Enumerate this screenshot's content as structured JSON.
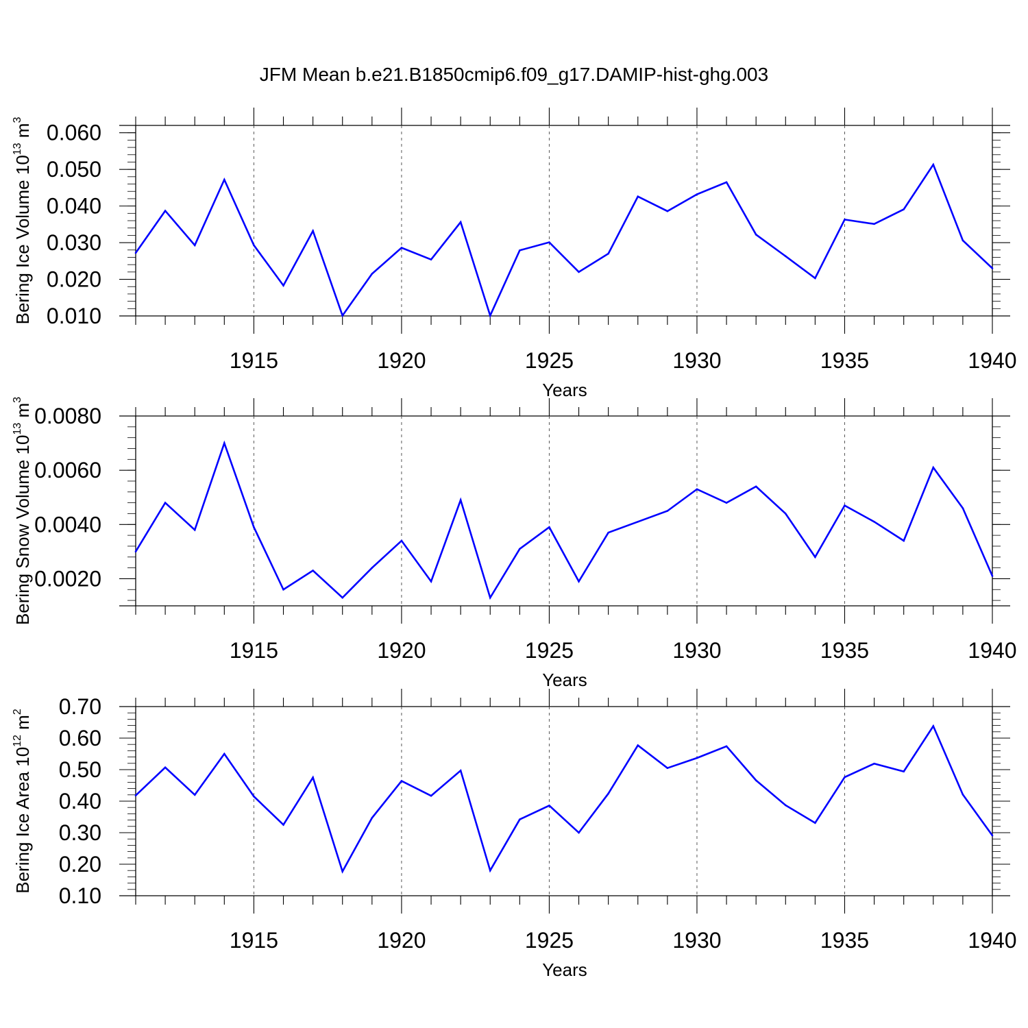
{
  "title": "JFM Mean b.e21.B1850cmip6.f09_g17.DAMIP-hist-ghg.003",
  "line_color": "#0000ff",
  "chart_data": [
    {
      "type": "line",
      "ylabel": "Bering Ice Volume 10",
      "ylabel_exp": "13",
      "ylabel_unit": " m",
      "ylabel_unit_exp": "3",
      "xlabel": "Years",
      "xlim": [
        1911,
        1940
      ],
      "ylim": [
        0.01,
        0.062
      ],
      "yticks": [
        0.01,
        0.02,
        0.03,
        0.04,
        0.05,
        0.06
      ],
      "ytick_labels": [
        "0.010",
        "0.020",
        "0.030",
        "0.040",
        "0.050",
        "0.060"
      ],
      "xticks": [
        1915,
        1920,
        1925,
        1930,
        1935,
        1940
      ],
      "xtick_labels": [
        "1915",
        "1920",
        "1925",
        "1930",
        "1935",
        "1940"
      ],
      "grid": "dashed vertical at major x ticks",
      "x": [
        1911,
        1912,
        1913,
        1914,
        1915,
        1916,
        1917,
        1918,
        1919,
        1920,
        1921,
        1922,
        1923,
        1924,
        1925,
        1926,
        1927,
        1928,
        1929,
        1930,
        1931,
        1932,
        1933,
        1934,
        1935,
        1936,
        1937,
        1938,
        1939,
        1940
      ],
      "values": [
        0.0272,
        0.0387,
        0.0293,
        0.0472,
        0.0293,
        0.0183,
        0.0332,
        0.0101,
        0.0215,
        0.0286,
        0.0254,
        0.0356,
        0.0101,
        0.0279,
        0.0301,
        0.022,
        0.027,
        0.0426,
        0.0386,
        0.0432,
        0.0465,
        0.0322,
        0.0263,
        0.0203,
        0.0363,
        0.0351,
        0.0391,
        0.0513,
        0.0306,
        0.023
      ]
    },
    {
      "type": "line",
      "ylabel": "Bering Snow Volume 10",
      "ylabel_exp": "13",
      "ylabel_unit": " m",
      "ylabel_unit_exp": "3",
      "xlabel": "Years",
      "xlim": [
        1911,
        1940
      ],
      "ylim": [
        0.001,
        0.008
      ],
      "yticks": [
        0.002,
        0.004,
        0.006,
        0.008
      ],
      "ytick_labels": [
        "0.0020",
        "0.0040",
        "0.0060",
        "0.0080"
      ],
      "xticks": [
        1915,
        1920,
        1925,
        1930,
        1935,
        1940
      ],
      "xtick_labels": [
        "1915",
        "1920",
        "1925",
        "1930",
        "1935",
        "1940"
      ],
      "grid": "dashed vertical at major x ticks",
      "x": [
        1911,
        1912,
        1913,
        1914,
        1915,
        1916,
        1917,
        1918,
        1919,
        1920,
        1921,
        1922,
        1923,
        1924,
        1925,
        1926,
        1927,
        1928,
        1929,
        1930,
        1931,
        1932,
        1933,
        1934,
        1935,
        1936,
        1937,
        1938,
        1939,
        1940
      ],
      "values": [
        0.003,
        0.0048,
        0.0038,
        0.007,
        0.0039,
        0.0016,
        0.0023,
        0.0013,
        0.0024,
        0.0034,
        0.0019,
        0.0049,
        0.0013,
        0.0031,
        0.0039,
        0.0019,
        0.0037,
        0.0041,
        0.0045,
        0.0053,
        0.0048,
        0.0054,
        0.0044,
        0.0028,
        0.0047,
        0.0041,
        0.0034,
        0.0061,
        0.0046,
        0.0021
      ]
    },
    {
      "type": "line",
      "ylabel": "Bering Ice Area 10",
      "ylabel_exp": "12",
      "ylabel_unit": " m",
      "ylabel_unit_exp": "2",
      "xlabel": "Years",
      "xlim": [
        1911,
        1940
      ],
      "ylim": [
        0.1,
        0.7
      ],
      "yticks": [
        0.1,
        0.2,
        0.3,
        0.4,
        0.5,
        0.6,
        0.7
      ],
      "ytick_labels": [
        "0.10",
        "0.20",
        "0.30",
        "0.40",
        "0.50",
        "0.60",
        "0.70"
      ],
      "xticks": [
        1915,
        1920,
        1925,
        1930,
        1935,
        1940
      ],
      "xtick_labels": [
        "1915",
        "1920",
        "1925",
        "1930",
        "1935",
        "1940"
      ],
      "grid": "dashed vertical at major x ticks",
      "x": [
        1911,
        1912,
        1913,
        1914,
        1915,
        1916,
        1917,
        1918,
        1919,
        1920,
        1921,
        1922,
        1923,
        1924,
        1925,
        1926,
        1927,
        1928,
        1929,
        1930,
        1931,
        1932,
        1933,
        1934,
        1935,
        1936,
        1937,
        1938,
        1939,
        1940
      ],
      "values": [
        0.418,
        0.507,
        0.42,
        0.55,
        0.415,
        0.325,
        0.475,
        0.177,
        0.347,
        0.464,
        0.417,
        0.497,
        0.18,
        0.342,
        0.386,
        0.3,
        0.424,
        0.577,
        0.505,
        0.537,
        0.574,
        0.466,
        0.387,
        0.331,
        0.476,
        0.519,
        0.494,
        0.638,
        0.421,
        0.291
      ]
    }
  ]
}
